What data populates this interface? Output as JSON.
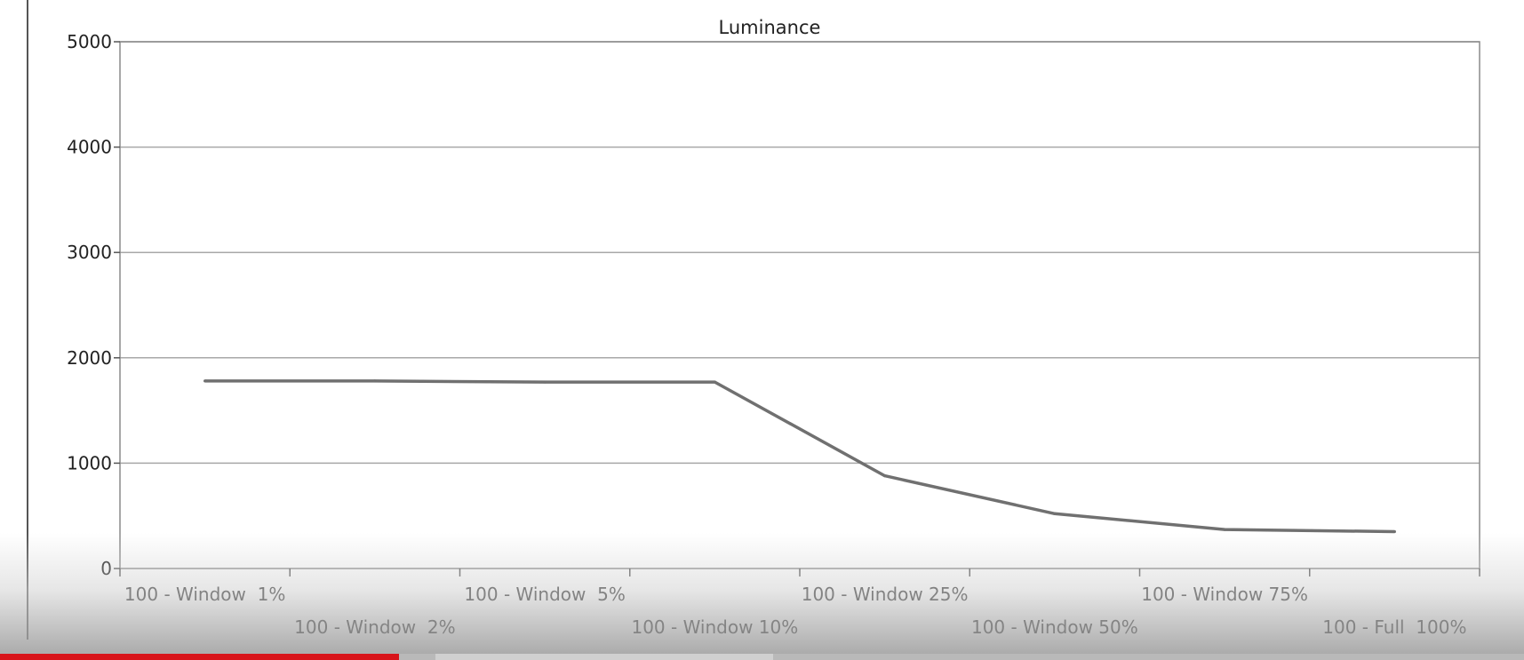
{
  "chart_data": {
    "type": "line",
    "title": "Luminance",
    "xlabel": "",
    "ylabel": "",
    "ylim": [
      0,
      5000
    ],
    "yticks": [
      "0",
      "1000",
      "2000",
      "3000",
      "4000",
      "5000"
    ],
    "categories": [
      "100 - Window  1%",
      "100 - Window  2%",
      "100 - Window  5%",
      "100 - Window 10%",
      "100 - Window 25%",
      "100 - Window 50%",
      "100 - Window 75%",
      "100 - Full  100%"
    ],
    "series": [
      {
        "values": [
          1780,
          1780,
          1770,
          1770,
          880,
          520,
          370,
          350
        ]
      }
    ],
    "grid": true,
    "legend": "none",
    "colors": {
      "line": "#707070",
      "grid": "#a8a8a8",
      "axis": "#555555"
    }
  },
  "player": {
    "progress": 0.262
  }
}
